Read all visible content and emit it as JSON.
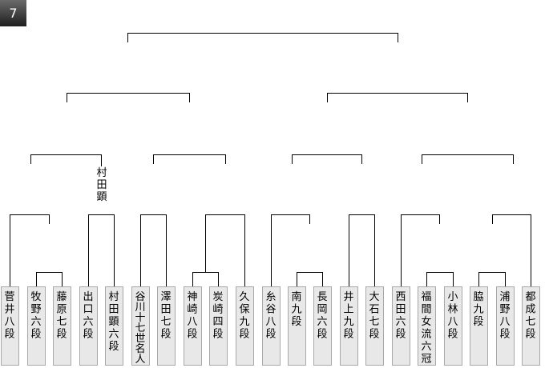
{
  "tournament": {
    "number": "7"
  },
  "players": [
    {
      "name": "菅井",
      "rank": "八段"
    },
    {
      "name": "牧野",
      "rank": "六段"
    },
    {
      "name": "藤原",
      "rank": "七段"
    },
    {
      "name": "出口",
      "rank": "六段"
    },
    {
      "name": "村田顕",
      "rank": "六段"
    },
    {
      "name": "谷川十七世名人",
      "rank": ""
    },
    {
      "name": "澤田",
      "rank": "七段"
    },
    {
      "name": "神崎",
      "rank": "八段"
    },
    {
      "name": "炭崎",
      "rank": "四段"
    },
    {
      "name": "久保",
      "rank": "九段"
    },
    {
      "name": "糸谷",
      "rank": "八段"
    },
    {
      "name": "南",
      "rank": "九段"
    },
    {
      "name": "長岡",
      "rank": "六段"
    },
    {
      "name": "井上",
      "rank": "九段"
    },
    {
      "name": "大石",
      "rank": "七段"
    },
    {
      "name": "西田",
      "rank": "六段"
    },
    {
      "name": "福間",
      "rank": "女流六冠"
    },
    {
      "name": "小林",
      "rank": "八段"
    },
    {
      "name": "脇",
      "rank": "九段"
    },
    {
      "name": "浦野",
      "rank": "八段"
    },
    {
      "name": "都成",
      "rank": "七段"
    }
  ],
  "advancing_note": "村田顕"
}
